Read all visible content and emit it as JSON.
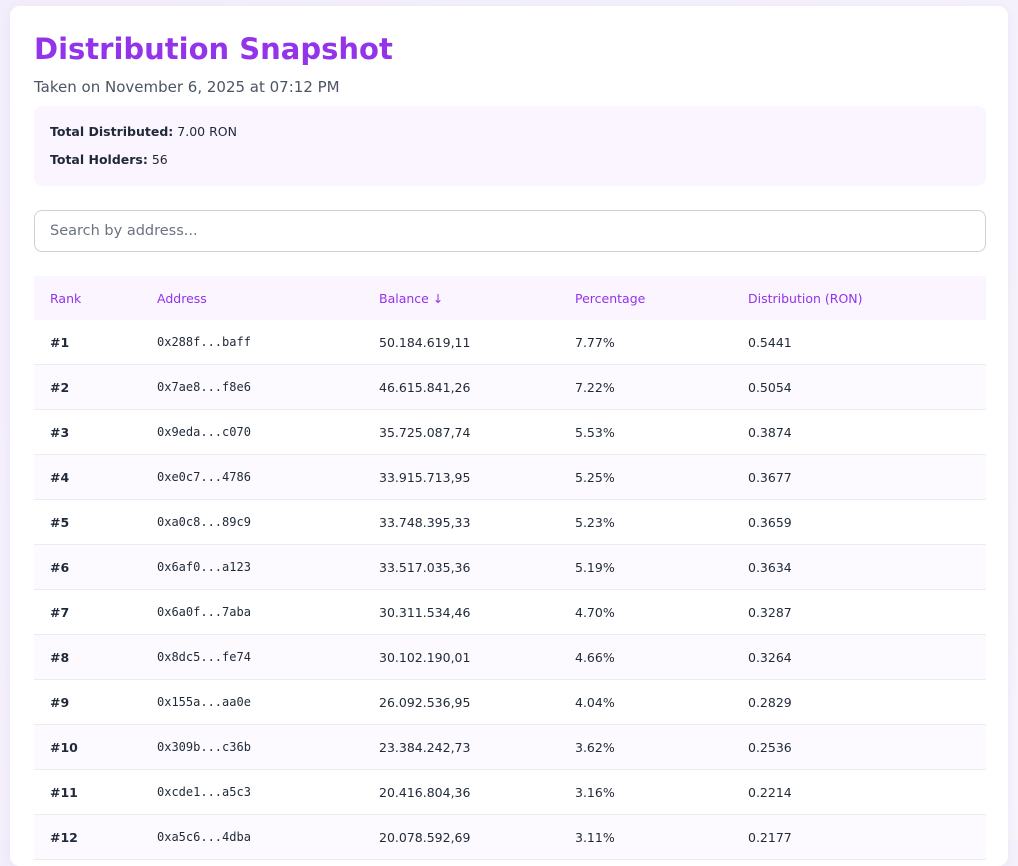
{
  "header": {
    "title": "Distribution Snapshot",
    "subtitle": "Taken on November 6, 2025 at 07:12 PM"
  },
  "summary": [
    {
      "label": "Total Distributed:",
      "value": "7.00 RON"
    },
    {
      "label": "Total Holders:",
      "value": "56"
    }
  ],
  "search": {
    "placeholder": "Search by address..."
  },
  "table": {
    "columns": [
      "Rank",
      "Address",
      "Balance ↓",
      "Percentage",
      "Distribution (RON)"
    ],
    "rows": [
      [
        "#1",
        "0x288f...baff",
        "50.184.619,11",
        "7.77%",
        "0.5441"
      ],
      [
        "#2",
        "0x7ae8...f8e6",
        "46.615.841,26",
        "7.22%",
        "0.5054"
      ],
      [
        "#3",
        "0x9eda...c070",
        "35.725.087,74",
        "5.53%",
        "0.3874"
      ],
      [
        "#4",
        "0xe0c7...4786",
        "33.915.713,95",
        "5.25%",
        "0.3677"
      ],
      [
        "#5",
        "0xa0c8...89c9",
        "33.748.395,33",
        "5.23%",
        "0.3659"
      ],
      [
        "#6",
        "0x6af0...a123",
        "33.517.035,36",
        "5.19%",
        "0.3634"
      ],
      [
        "#7",
        "0x6a0f...7aba",
        "30.311.534,46",
        "4.70%",
        "0.3287"
      ],
      [
        "#8",
        "0x8dc5...fe74",
        "30.102.190,01",
        "4.66%",
        "0.3264"
      ],
      [
        "#9",
        "0x155a...aa0e",
        "26.092.536,95",
        "4.04%",
        "0.2829"
      ],
      [
        "#10",
        "0x309b...c36b",
        "23.384.242,73",
        "3.62%",
        "0.2536"
      ],
      [
        "#11",
        "0xcde1...a5c3",
        "20.416.804,36",
        "3.16%",
        "0.2214"
      ],
      [
        "#12",
        "0xa5c6...4dba",
        "20.078.592,69",
        "3.11%",
        "0.2177"
      ]
    ]
  }
}
